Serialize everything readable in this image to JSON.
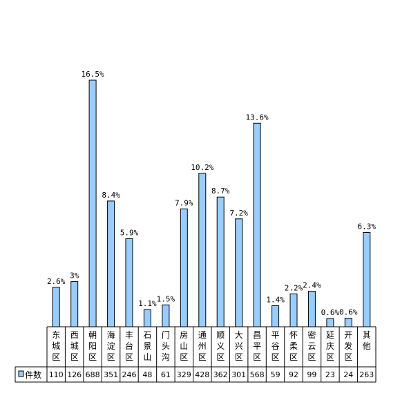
{
  "chart_data": {
    "type": "bar",
    "categories": [
      "东城区",
      "西城区",
      "朝阳区",
      "海淀区",
      "丰台区",
      "石景山",
      "门头沟",
      "房山区",
      "通州区",
      "顺义区",
      "大兴区",
      "昌平区",
      "平谷区",
      "怀柔区",
      "密云区",
      "延庆区",
      "开发区",
      "其他"
    ],
    "values": [
      110,
      126,
      688,
      351,
      246,
      48,
      61,
      329,
      428,
      362,
      301,
      568,
      59,
      92,
      99,
      23,
      24,
      263
    ],
    "data_labels": [
      "2.6%",
      "3%",
      "16.5%",
      "8.4%",
      "5.9%",
      "1.1%",
      "1.5%",
      "7.9%",
      "10.2%",
      "8.7%",
      "7.2%",
      "13.6%",
      "1.4%",
      "2.2%",
      "2.4%",
      "0.6%",
      "0.6%",
      "6.3%"
    ],
    "series": [
      {
        "name": "件数",
        "values": [
          110,
          126,
          688,
          351,
          246,
          48,
          61,
          329,
          428,
          362,
          301,
          568,
          59,
          92,
          99,
          23,
          24,
          263
        ]
      }
    ],
    "title": "",
    "xlabel": "",
    "ylabel": "",
    "ylim": [
      0,
      688
    ],
    "grid": false,
    "legend": "data-table-left",
    "colors": {
      "bar_fill": "#99ccff",
      "bar_stroke": "#000000"
    }
  }
}
